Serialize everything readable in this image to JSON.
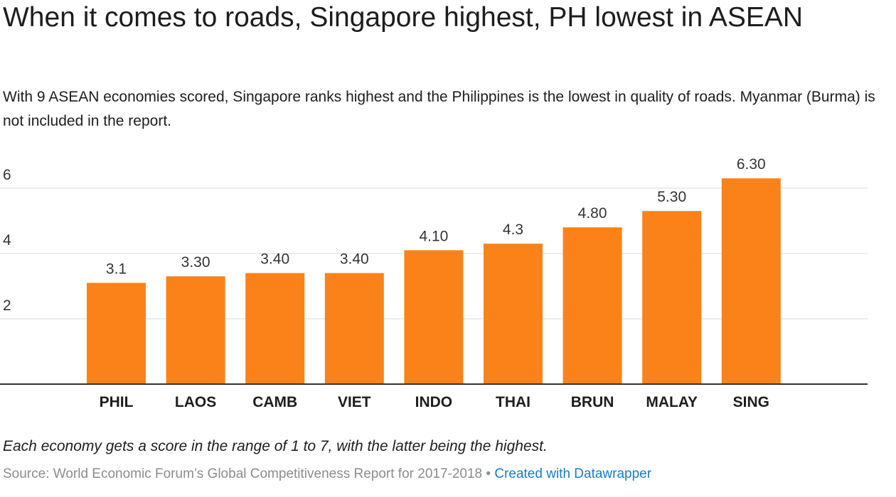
{
  "header": {
    "title": "When it comes to roads, Singapore highest, PH lowest in ASEAN",
    "subtitle": "With 9 ASEAN economies scored, Singapore ranks highest and the Philippines is the lowest in quality of roads. Myanmar (Burma) is not included in the report."
  },
  "chart_data": {
    "type": "bar",
    "categories": [
      "PHIL",
      "LAOS",
      "CAMB",
      "VIET",
      "INDO",
      "THAI",
      "BRUN",
      "MALAY",
      "SING"
    ],
    "values": [
      3.1,
      3.3,
      3.4,
      3.4,
      4.1,
      4.3,
      4.8,
      5.3,
      6.3
    ],
    "value_labels": [
      "3.1",
      "3.30",
      "3.40",
      "3.40",
      "4.10",
      "4.3",
      "4.80",
      "5.30",
      "6.30"
    ],
    "yticks": [
      "2",
      "4",
      "6"
    ],
    "ylim": [
      0,
      6.3
    ],
    "grid": true,
    "bar_color": "#fb8219"
  },
  "footer": {
    "note": "Each economy gets a score in the range of 1 to 7, with the latter being the highest.",
    "source": "Source: World Economic Forum’s Global Competitiveness Report for 2017-2018",
    "separator": " • ",
    "credit": "Created with Datawrapper"
  }
}
